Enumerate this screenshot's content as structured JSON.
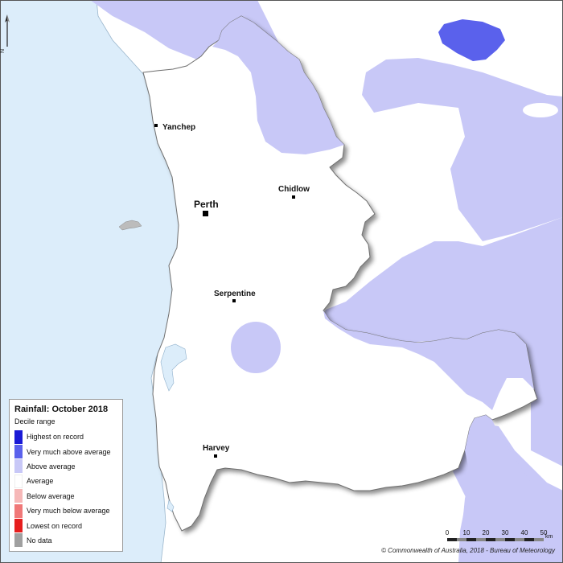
{
  "map": {
    "places": [
      {
        "name": "Yanchep",
        "major": false
      },
      {
        "name": "Chidlow",
        "major": false
      },
      {
        "name": "Perth",
        "major": true
      },
      {
        "name": "Serpentine",
        "major": false
      },
      {
        "name": "Harvey",
        "major": false
      }
    ],
    "colors": {
      "ocean": "#dcedfa",
      "above_average": "#c8c8f7",
      "very_much_above": "#5a61ec",
      "district": "#ffffff",
      "outside_land": "#ffffff"
    }
  },
  "north_arrow": {
    "letter": "N",
    "icon": "north-arrow-icon"
  },
  "legend": {
    "title": "Rainfall: October 2018",
    "subtitle": "Decile range",
    "items": [
      {
        "label": "Highest on record",
        "color": "#1a1ad6"
      },
      {
        "label": "Very much above average",
        "color": "#5a61ec"
      },
      {
        "label": "Above average",
        "color": "#c8c8f7"
      },
      {
        "label": "Average",
        "color": "#ffffff"
      },
      {
        "label": "Below average",
        "color": "#f6b8b8"
      },
      {
        "label": "Very much below average",
        "color": "#f07878"
      },
      {
        "label": "Lowest on record",
        "color": "#e61e1e"
      },
      {
        "label": "No data",
        "color": "#a0a0a0"
      }
    ]
  },
  "scale": {
    "ticks": [
      "0",
      "10",
      "20",
      "30",
      "40",
      "50"
    ],
    "unit": "km"
  },
  "copyright": "© Commonwealth of Australia, 2018 - Bureau of Meteorology"
}
